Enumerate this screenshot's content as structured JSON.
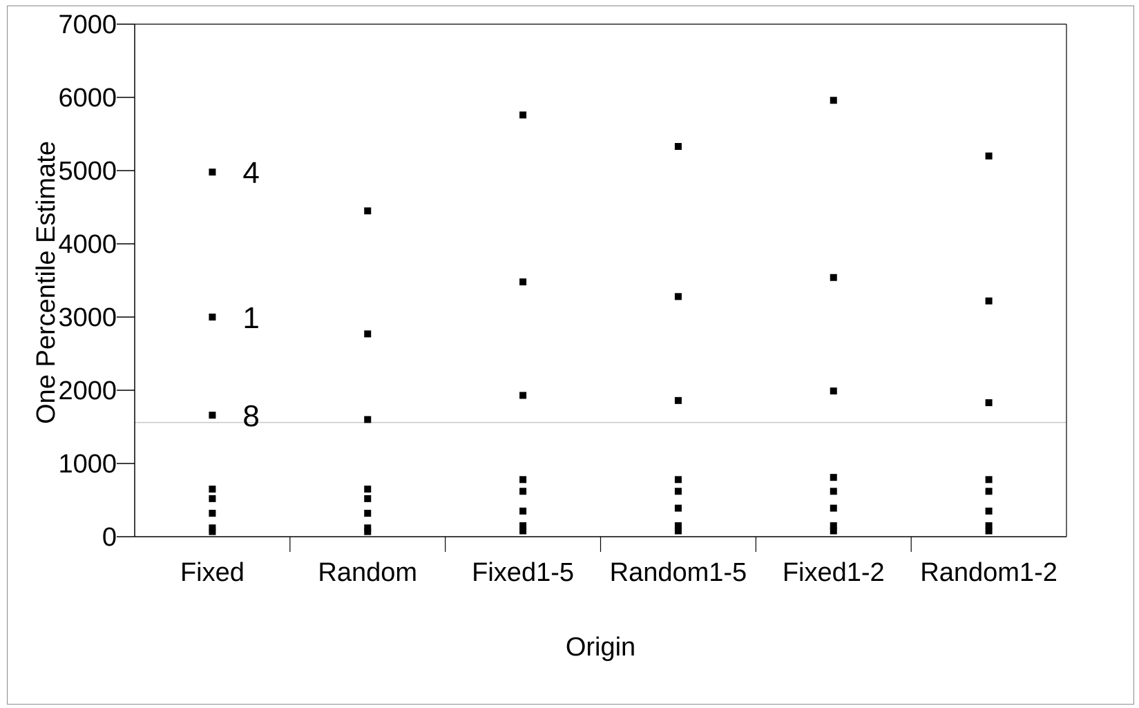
{
  "chart_data": {
    "type": "scatter",
    "title": "",
    "xlabel": "Origin",
    "ylabel": "One Percentile Estimate",
    "ylim": [
      0,
      7000
    ],
    "yticks": [
      0,
      1000,
      2000,
      3000,
      4000,
      5000,
      6000,
      7000
    ],
    "yticks_labels": [
      "0",
      "1000",
      "2000",
      "3000",
      "4000",
      "5000",
      "6000",
      "7000"
    ],
    "categories": [
      "Fixed",
      "Random",
      "Fixed1-5",
      "Random1-5",
      "Fixed1-2",
      "Random1-2"
    ],
    "reference_line": 1560,
    "grid": false,
    "legend": "none",
    "marker_color": "#000000",
    "reference_line_color": "#c8c8c8",
    "series": [
      {
        "values": [
          [
            4980,
            3000,
            1660,
            650,
            520,
            320,
            120,
            70
          ],
          [
            4450,
            2770,
            1600,
            650,
            520,
            320,
            120,
            70
          ],
          [
            5760,
            3480,
            1930,
            780,
            620,
            350,
            150,
            80
          ],
          [
            5330,
            3280,
            1860,
            780,
            620,
            390,
            150,
            80
          ],
          [
            5960,
            3540,
            1990,
            810,
            620,
            390,
            150,
            80
          ],
          [
            5200,
            3220,
            1830,
            780,
            620,
            350,
            150,
            80
          ]
        ]
      }
    ],
    "annotations": [
      {
        "category": "Fixed",
        "y": 4980,
        "text": "4"
      },
      {
        "category": "Fixed",
        "y": 3000,
        "text": "1"
      },
      {
        "category": "Fixed",
        "y": 1660,
        "text": "8"
      }
    ]
  }
}
